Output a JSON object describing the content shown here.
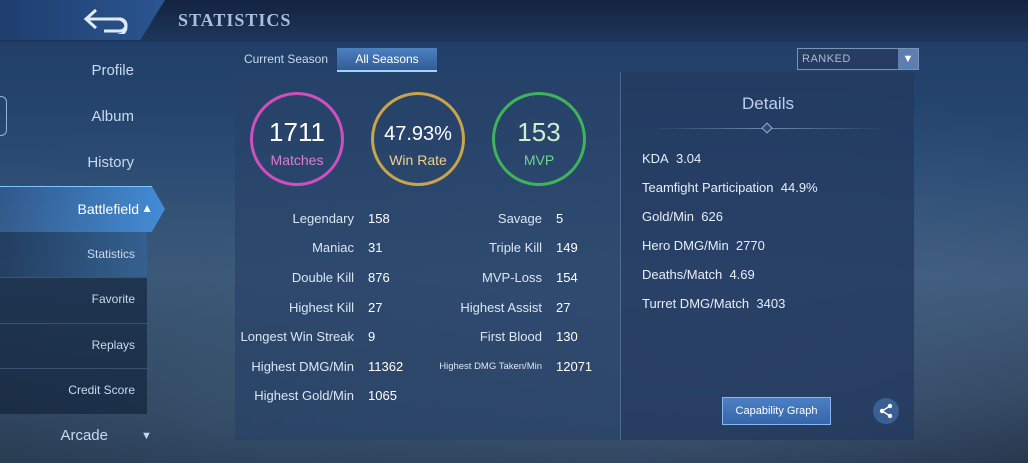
{
  "header": {
    "title": "STATISTICS"
  },
  "sidebar": {
    "items": [
      {
        "label": "Profile"
      },
      {
        "label": "Album"
      },
      {
        "label": "History"
      },
      {
        "label": "Battlefield"
      },
      {
        "label": "Arcade"
      }
    ],
    "sub_items": [
      {
        "label": "Statistics"
      },
      {
        "label": "Favorite"
      },
      {
        "label": "Replays"
      },
      {
        "label": "Credit Score"
      }
    ]
  },
  "tabs": [
    {
      "label": "Current Season"
    },
    {
      "label": "All Seasons"
    }
  ],
  "mode_select": {
    "value": "RANKED"
  },
  "summary": {
    "matches": {
      "value": "1711",
      "label": "Matches",
      "color": "#d04fbf"
    },
    "win_rate": {
      "value": "47.93%",
      "label": "Win Rate",
      "color": "#c9a44a"
    },
    "mvp": {
      "value": "153",
      "label": "MVP",
      "color": "#3fb35a"
    }
  },
  "stats_left": [
    {
      "label": "Legendary",
      "value": "158"
    },
    {
      "label": "Maniac",
      "value": "31"
    },
    {
      "label": "Double Kill",
      "value": "876"
    },
    {
      "label": "Highest Kill",
      "value": "27"
    },
    {
      "label": "Longest Win Streak",
      "value": "9"
    },
    {
      "label": "Highest DMG/Min",
      "value": "11362"
    },
    {
      "label": "Highest Gold/Min",
      "value": "1065"
    }
  ],
  "stats_right": [
    {
      "label": "Savage",
      "value": "5"
    },
    {
      "label": "Triple Kill",
      "value": "149"
    },
    {
      "label": "MVP-Loss",
      "value": "154"
    },
    {
      "label": "Highest Assist",
      "value": "27"
    },
    {
      "label": "First Blood",
      "value": "130"
    },
    {
      "label": "Highest DMG Taken/Min",
      "value": "12071"
    }
  ],
  "details": {
    "title": "Details",
    "rows": [
      {
        "label": "KDA",
        "value": "3.04"
      },
      {
        "label": "Teamfight Participation",
        "value": "44.9%"
      },
      {
        "label": "Gold/Min",
        "value": "626"
      },
      {
        "label": "Hero DMG/Min",
        "value": "2770"
      },
      {
        "label": "Deaths/Match",
        "value": "4.69"
      },
      {
        "label": "Turret DMG/Match",
        "value": "3403"
      }
    ],
    "capability_button": "Capability Graph"
  }
}
